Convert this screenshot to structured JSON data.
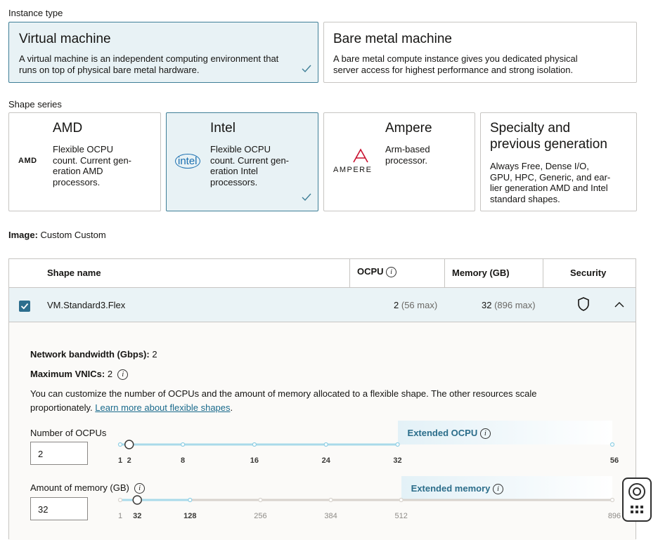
{
  "instance_type": {
    "label": "Instance type",
    "options": [
      {
        "title": "Virtual machine",
        "description": [
          "A virtual machine is an independent computing environment that",
          "runs on top of physical bare metal hardware."
        ]
      },
      {
        "title": "Bare metal machine",
        "description": [
          "A bare metal compute instance gives you dedicated physical",
          "server access for highest performance and strong isolation."
        ]
      }
    ]
  },
  "shape_series": {
    "label": "Shape series",
    "options": [
      {
        "title": "AMD",
        "logo": "AMD",
        "description": [
          "Flexible OCPU",
          "count. Current gen-",
          "eration AMD",
          "processors."
        ]
      },
      {
        "title": "Intel",
        "logo": "intel",
        "description": [
          "Flexible OCPU",
          "count. Current gen-",
          "eration Intel",
          "processors."
        ]
      },
      {
        "title": "Ampere",
        "logo": "AMPERE",
        "description": [
          "Arm-based",
          "processor."
        ]
      },
      {
        "title": [
          "Specialty and",
          "previous generation"
        ],
        "description": [
          "Always Free, Dense I/O,",
          "GPU, HPC, Generic, and ear-",
          "lier generation AMD and Intel",
          "standard shapes."
        ]
      }
    ]
  },
  "image": {
    "label": "Image:",
    "value": "Custom Custom"
  },
  "table": {
    "headers": [
      "Shape name",
      "OCPU",
      "Memory (GB)",
      "Security"
    ],
    "rows": [
      {
        "shape_name": "VM.Standard3.Flex",
        "ocpu": "2",
        "ocpu_max": "(56 max)",
        "memory": "32",
        "memory_max": "(896 max)"
      }
    ]
  },
  "details": {
    "network_bandwidth": {
      "label": "Network bandwidth (Gbps):",
      "value": "2"
    },
    "max_vnics": {
      "label": "Maximum VNICs:",
      "value": "2"
    },
    "description": [
      "You can customize the number of OCPUs and the amount of memory allocated to a flexible shape. The other resources scale",
      "proportionately."
    ],
    "link": "Learn more about flexible shapes",
    "link_suffix": ".",
    "ocpu_slider": {
      "label": "Number of OCPUs",
      "value": 2,
      "extended_label": "Extended OCPU",
      "ticks": [
        1,
        2,
        8,
        16,
        24,
        32,
        56
      ]
    },
    "memory_slider": {
      "label": "Amount of memory (GB)",
      "value": 32,
      "extended_label": "Extended memory",
      "ticks": [
        1,
        32,
        128,
        256,
        384,
        512,
        896
      ]
    }
  }
}
